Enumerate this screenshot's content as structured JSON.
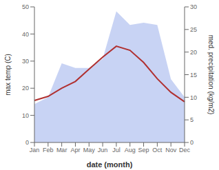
{
  "chart_data": {
    "type": "line",
    "categories": [
      "Jan",
      "Feb",
      "Mar",
      "Apr",
      "May",
      "Jun",
      "Jul",
      "Aug",
      "Sep",
      "Oct",
      "Nov",
      "Dec"
    ],
    "xlabel": "date (month)",
    "ylabel": "max temp (C)",
    "y2label": "med. precipitation (kg/m2)",
    "series": [
      {
        "type": "area",
        "axis": "y2",
        "color": "#aabbee",
        "values": [
          8.5,
          10.0,
          17.5,
          16.5,
          16.5,
          18.5,
          29.0,
          26.0,
          26.5,
          26.0,
          14.0,
          10.0
        ]
      },
      {
        "type": "line",
        "color": "#b03030",
        "values": [
          15.5,
          17.0,
          20.0,
          22.5,
          27.0,
          31.5,
          35.5,
          34.0,
          29.5,
          23.5,
          18.5,
          15.0
        ]
      }
    ],
    "ylim": [
      0,
      50
    ],
    "yticks": [
      0,
      10,
      20,
      30,
      40,
      50
    ],
    "y2lim": [
      0,
      30
    ],
    "y2ticks": [
      0,
      5,
      10,
      15,
      20,
      25,
      30
    ],
    "grid": false
  }
}
